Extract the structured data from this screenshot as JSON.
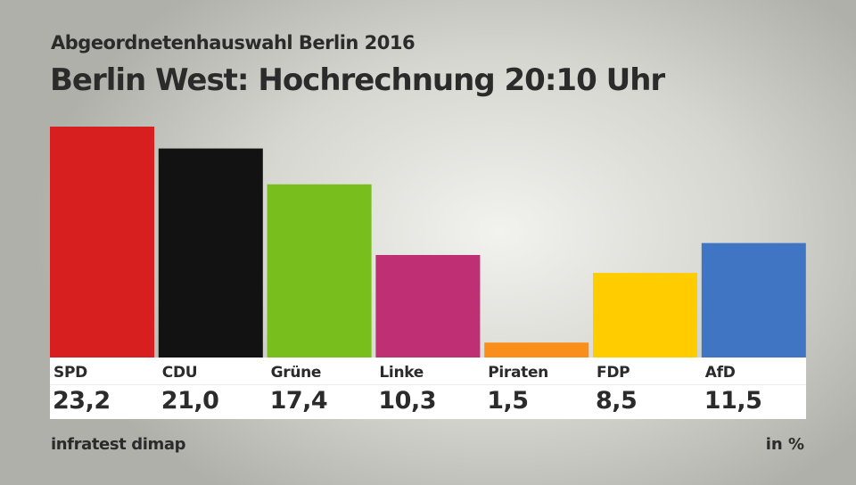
{
  "header": {
    "subtitle": "Abgeordnetenhauswahl Berlin 2016",
    "title": "Berlin West: Hochrechnung 20:10 Uhr"
  },
  "footer": {
    "source": "infratest dimap",
    "unit": "in %"
  },
  "chart_data": {
    "type": "bar",
    "title": "Berlin West: Hochrechnung 20:10 Uhr",
    "categories": [
      "SPD",
      "CDU",
      "Grüne",
      "Linke",
      "Piraten",
      "FDP",
      "AfD"
    ],
    "values": [
      23.2,
      21.0,
      17.4,
      10.3,
      1.5,
      8.5,
      11.5
    ],
    "value_labels": [
      "23,2",
      "21,0",
      "17,4",
      "10,3",
      "1,5",
      "8,5",
      "11,5"
    ],
    "colors": [
      "#d81f1f",
      "#121212",
      "#78be1c",
      "#be2f73",
      "#f98e1b",
      "#ffcc00",
      "#3f75c3"
    ],
    "unit": "in %",
    "grid": false
  }
}
